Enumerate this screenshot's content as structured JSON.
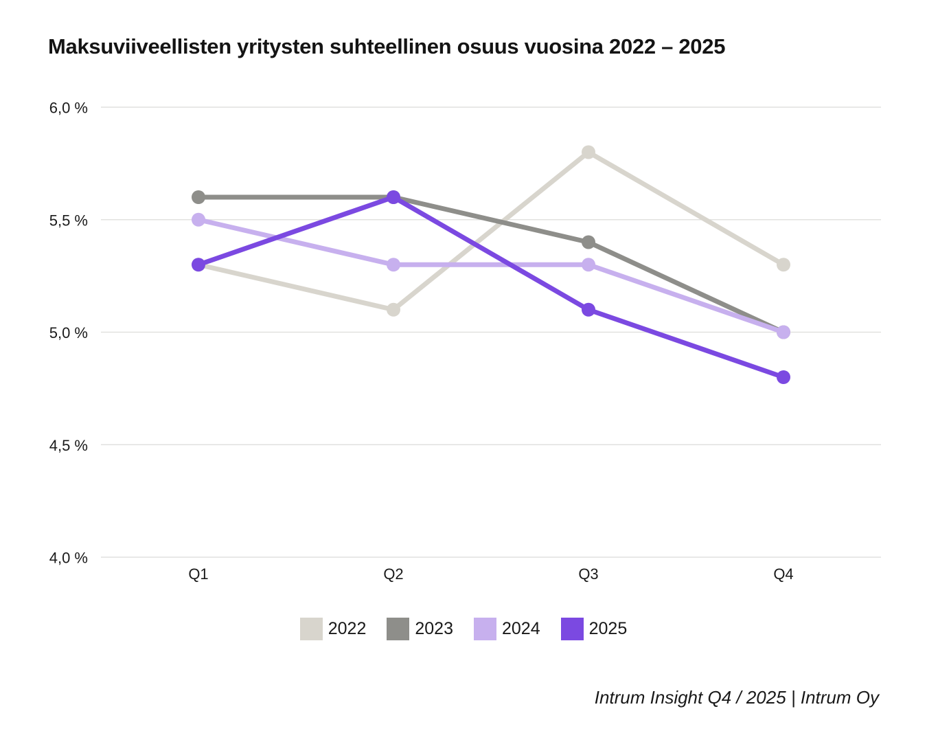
{
  "title": "Maksuviiveellisten yritysten suhteellinen osuus vuosina 2022 – 2025",
  "footer": "Intrum Insight Q4 / 2025 | Intrum Oy",
  "colors": {
    "background": "#ffffff",
    "text": "#191919",
    "grid": "#e1e1df"
  },
  "chart_data": {
    "type": "line",
    "title": "Maksuviiveellisten yritysten suhteellinen osuus vuosina 2022 – 2025",
    "categories": [
      "Q1",
      "Q2",
      "Q3",
      "Q4"
    ],
    "series": [
      {
        "name": "2022",
        "color": "#d8d5cd",
        "values": [
          5.3,
          5.1,
          5.8,
          5.3
        ]
      },
      {
        "name": "2023",
        "color": "#8e8e8a",
        "values": [
          5.6,
          5.6,
          5.4,
          5.0
        ]
      },
      {
        "name": "2024",
        "color": "#c7b0ee",
        "values": [
          5.5,
          5.3,
          5.3,
          5.0
        ]
      },
      {
        "name": "2025",
        "color": "#7b49e1",
        "values": [
          5.3,
          5.6,
          5.1,
          4.8
        ]
      }
    ],
    "y_ticks": [
      {
        "label": "6,0 %",
        "value": 6.0
      },
      {
        "label": "5,5 %",
        "value": 5.5
      },
      {
        "label": "5,0 %",
        "value": 5.0
      },
      {
        "label": "4,5 %",
        "value": 4.5
      },
      {
        "label": "4,0 %",
        "value": 4.0
      }
    ],
    "ylim": [
      4.0,
      6.0
    ],
    "grid": "horizontal",
    "legend_position": "bottom",
    "unit": "%"
  }
}
